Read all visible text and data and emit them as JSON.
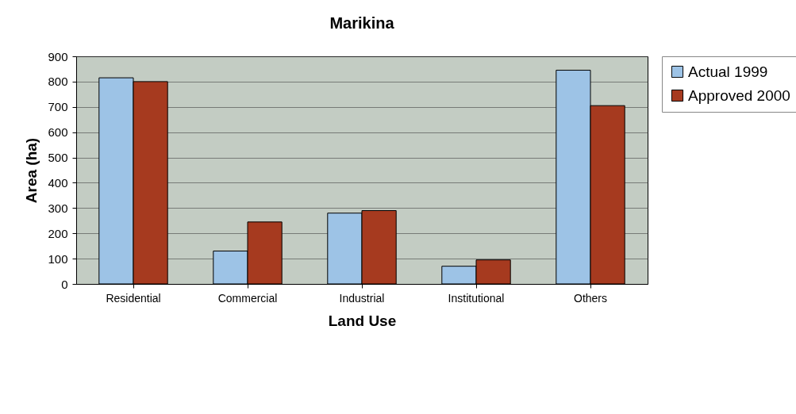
{
  "chart_data": {
    "type": "bar",
    "title": "Marikina",
    "xlabel": "Land Use",
    "ylabel": "Area (ha)",
    "categories": [
      "Residential",
      "Commercial",
      "Industrial",
      "Institutional",
      "Others"
    ],
    "series": [
      {
        "name": "Actual 1999",
        "color": "#9dc3e6",
        "values": [
          815,
          130,
          280,
          70,
          845
        ]
      },
      {
        "name": "Approved 2000",
        "color": "#a63a1f",
        "values": [
          800,
          245,
          290,
          95,
          705
        ]
      }
    ],
    "ylim": [
      0,
      900
    ],
    "yticks": [
      0,
      100,
      200,
      300,
      400,
      500,
      600,
      700,
      800,
      900
    ],
    "grid": "y",
    "legend": "right"
  }
}
